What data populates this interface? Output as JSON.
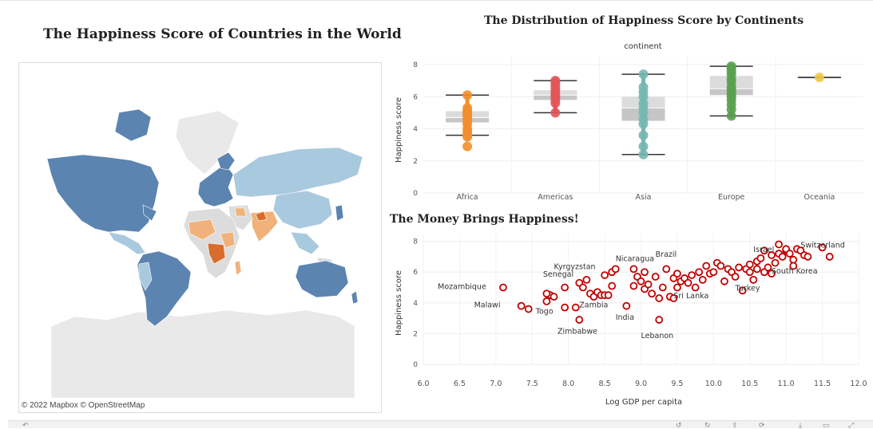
{
  "map": {
    "title": "The Happiness Score of Countries in the World",
    "attribution": "© 2022 Mapbox © OpenStreetMap",
    "colors": {
      "water": "#ffffff",
      "land_no_data": "#e9e9e9",
      "high": "#5b84b1",
      "mid_high": "#a9c9de",
      "mid": "#dcdcdc",
      "mid_low": "#f0b27a",
      "low": "#d96c2b"
    }
  },
  "box_chart": {
    "title": "The Distribution of Happiness Score by Continents",
    "header": "continent",
    "chart_data": {
      "type": "box",
      "ylabel": "Happiness score",
      "ylim": [
        0,
        8.5
      ],
      "yticks": [
        "0",
        "2",
        "4",
        "6",
        "8"
      ],
      "categories": [
        "Africa",
        "Americas",
        "Asia",
        "Europe",
        "Oceania"
      ],
      "colors": [
        "#f28e2b",
        "#e15759",
        "#76b7b2",
        "#59a14f",
        "#edc948"
      ],
      "boxes": [
        {
          "min": 3.6,
          "q1": 4.4,
          "median": 4.7,
          "q3": 5.1,
          "max": 6.1
        },
        {
          "min": 5.0,
          "q1": 5.8,
          "median": 6.1,
          "q3": 6.4,
          "max": 7.0
        },
        {
          "min": 2.4,
          "q1": 4.5,
          "median": 5.3,
          "q3": 6.0,
          "max": 7.4
        },
        {
          "min": 4.8,
          "q1": 6.1,
          "median": 6.5,
          "q3": 7.3,
          "max": 7.9
        },
        {
          "min": 7.2,
          "q1": 7.2,
          "median": 7.2,
          "q3": 7.2,
          "max": 7.2
        }
      ],
      "points": [
        [
          2.9,
          3.5,
          3.6,
          3.8,
          4.0,
          4.3,
          4.5,
          4.6,
          4.8,
          4.9,
          5.0,
          5.1,
          5.3,
          6.1
        ],
        [
          5.0,
          5.6,
          5.8,
          6.0,
          6.1,
          6.3,
          6.5,
          6.7,
          6.9,
          7.0
        ],
        [
          2.4,
          2.9,
          3.6,
          4.3,
          4.6,
          5.0,
          5.3,
          5.6,
          6.0,
          6.3,
          6.6,
          7.4
        ],
        [
          4.8,
          5.2,
          5.5,
          5.8,
          6.0,
          6.2,
          6.4,
          6.6,
          6.9,
          7.1,
          7.4,
          7.6,
          7.8,
          7.9
        ],
        [
          7.2
        ]
      ]
    }
  },
  "scatter_chart": {
    "title": "The Money Brings Happiness!",
    "chart_data": {
      "type": "scatter",
      "xlabel": "Log GDP per capita",
      "ylabel": "Happiness score",
      "xlim": [
        6.0,
        12.0
      ],
      "ylim": [
        0,
        8.5
      ],
      "xticks": [
        "6.0",
        "6.5",
        "7.0",
        "7.5",
        "8.0",
        "8.5",
        "9.0",
        "9.5",
        "10.0",
        "10.5",
        "11.0",
        "11.5",
        "12.0"
      ],
      "yticks": [
        "0",
        "2",
        "4",
        "6",
        "8"
      ],
      "color": "#c00000",
      "points": [
        [
          7.1,
          5.0
        ],
        [
          7.35,
          3.8
        ],
        [
          7.45,
          3.6
        ],
        [
          7.7,
          4.1
        ],
        [
          7.75,
          4.5
        ],
        [
          7.8,
          4.4
        ],
        [
          7.7,
          4.6
        ],
        [
          7.95,
          3.7
        ],
        [
          7.95,
          5.0
        ],
        [
          8.1,
          3.7
        ],
        [
          8.15,
          2.9
        ],
        [
          8.15,
          5.3
        ],
        [
          8.2,
          5.0
        ],
        [
          8.25,
          5.5
        ],
        [
          8.3,
          4.6
        ],
        [
          8.35,
          4.4
        ],
        [
          8.4,
          4.7
        ],
        [
          8.45,
          4.5
        ],
        [
          8.5,
          4.5
        ],
        [
          8.55,
          4.5
        ],
        [
          8.5,
          5.8
        ],
        [
          8.6,
          6.0
        ],
        [
          8.65,
          6.2
        ],
        [
          8.6,
          5.1
        ],
        [
          8.8,
          3.8
        ],
        [
          8.9,
          6.2
        ],
        [
          8.9,
          5.1
        ],
        [
          8.95,
          5.7
        ],
        [
          9.0,
          5.4
        ],
        [
          9.05,
          6.0
        ],
        [
          9.05,
          4.9
        ],
        [
          9.1,
          5.2
        ],
        [
          9.15,
          4.6
        ],
        [
          9.2,
          5.7
        ],
        [
          9.25,
          2.9
        ],
        [
          9.25,
          4.3
        ],
        [
          9.3,
          5.0
        ],
        [
          9.35,
          6.2
        ],
        [
          9.4,
          4.4
        ],
        [
          9.45,
          4.3
        ],
        [
          9.45,
          5.6
        ],
        [
          9.5,
          5.0
        ],
        [
          9.5,
          5.9
        ],
        [
          9.55,
          5.4
        ],
        [
          9.6,
          5.6
        ],
        [
          9.65,
          5.3
        ],
        [
          9.7,
          5.8
        ],
        [
          9.75,
          5.0
        ],
        [
          9.8,
          6.0
        ],
        [
          9.85,
          5.5
        ],
        [
          9.9,
          6.4
        ],
        [
          9.95,
          5.9
        ],
        [
          10.0,
          6.0
        ],
        [
          10.05,
          6.6
        ],
        [
          10.1,
          6.4
        ],
        [
          10.15,
          5.4
        ],
        [
          10.2,
          6.2
        ],
        [
          10.25,
          6.0
        ],
        [
          10.3,
          5.7
        ],
        [
          10.35,
          6.3
        ],
        [
          10.4,
          4.8
        ],
        [
          10.45,
          6.2
        ],
        [
          10.5,
          6.0
        ],
        [
          10.5,
          6.5
        ],
        [
          10.55,
          5.5
        ],
        [
          10.6,
          6.7
        ],
        [
          10.6,
          6.2
        ],
        [
          10.65,
          6.9
        ],
        [
          10.7,
          7.4
        ],
        [
          10.7,
          6.0
        ],
        [
          10.75,
          6.3
        ],
        [
          10.8,
          7.1
        ],
        [
          10.8,
          5.9
        ],
        [
          10.85,
          6.6
        ],
        [
          10.9,
          7.2
        ],
        [
          10.9,
          7.8
        ],
        [
          10.95,
          7.0
        ],
        [
          11.0,
          7.4
        ],
        [
          11.0,
          7.5
        ],
        [
          11.05,
          7.2
        ],
        [
          11.1,
          6.8
        ],
        [
          11.1,
          6.4
        ],
        [
          11.15,
          7.5
        ],
        [
          11.2,
          7.4
        ],
        [
          11.25,
          7.1
        ],
        [
          11.3,
          7.0
        ],
        [
          11.5,
          7.6
        ],
        [
          11.6,
          7.0
        ]
      ],
      "annotations": [
        {
          "text": "Switzerland",
          "x": 11.2,
          "y": 7.6
        },
        {
          "text": "Israel",
          "x": 10.55,
          "y": 7.3
        },
        {
          "text": "South Korea",
          "x": 10.8,
          "y": 5.9
        },
        {
          "text": "Turkey",
          "x": 10.3,
          "y": 4.8
        },
        {
          "text": "Sri Lanka",
          "x": 9.45,
          "y": 4.3
        },
        {
          "text": "Brazil",
          "x": 9.2,
          "y": 7.0
        },
        {
          "text": "Nicaragua",
          "x": 8.65,
          "y": 6.7
        },
        {
          "text": "Kyrgyzstan",
          "x": 7.8,
          "y": 6.2
        },
        {
          "text": "Senegal",
          "x": 7.65,
          "y": 5.7
        },
        {
          "text": "Mozambique",
          "x": 6.2,
          "y": 4.9
        },
        {
          "text": "Malawi",
          "x": 6.7,
          "y": 3.7
        },
        {
          "text": "Togo",
          "x": 7.55,
          "y": 3.3
        },
        {
          "text": "Zambia",
          "x": 8.15,
          "y": 3.7
        },
        {
          "text": "India",
          "x": 8.65,
          "y": 2.9
        },
        {
          "text": "Zimbabwe",
          "x": 7.85,
          "y": 2.0
        },
        {
          "text": "Lebanon",
          "x": 9.0,
          "y": 1.7
        }
      ]
    }
  }
}
